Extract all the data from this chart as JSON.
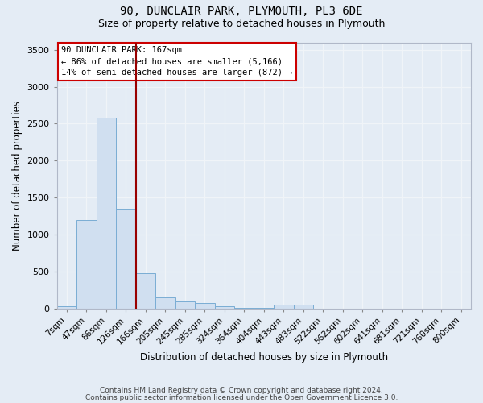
{
  "title1": "90, DUNCLAIR PARK, PLYMOUTH, PL3 6DE",
  "title2": "Size of property relative to detached houses in Plymouth",
  "xlabel": "Distribution of detached houses by size in Plymouth",
  "ylabel": "Number of detached properties",
  "categories": [
    "7sqm",
    "47sqm",
    "86sqm",
    "126sqm",
    "166sqm",
    "205sqm",
    "245sqm",
    "285sqm",
    "324sqm",
    "364sqm",
    "404sqm",
    "443sqm",
    "483sqm",
    "522sqm",
    "562sqm",
    "602sqm",
    "641sqm",
    "681sqm",
    "721sqm",
    "760sqm",
    "800sqm"
  ],
  "values": [
    25,
    1200,
    2580,
    1350,
    480,
    155,
    100,
    75,
    30,
    10,
    5,
    50,
    50,
    3,
    2,
    1,
    1,
    1,
    1,
    1,
    1
  ],
  "bar_color": "#d0dff0",
  "bar_edge_color": "#7aadd4",
  "marker_line_color": "#990000",
  "annotation_line1": "90 DUNCLAIR PARK: 167sqm",
  "annotation_line2": "← 86% of detached houses are smaller (5,166)",
  "annotation_line3": "14% of semi-detached houses are larger (872) →",
  "annotation_box_facecolor": "#ffffff",
  "annotation_box_edgecolor": "#cc0000",
  "ylim": [
    0,
    3600
  ],
  "yticks": [
    0,
    500,
    1000,
    1500,
    2000,
    2500,
    3000,
    3500
  ],
  "background_color": "#e4ecf5",
  "grid_color": "#f0f4f8",
  "footer1": "Contains HM Land Registry data © Crown copyright and database right 2024.",
  "footer2": "Contains public sector information licensed under the Open Government Licence 3.0."
}
